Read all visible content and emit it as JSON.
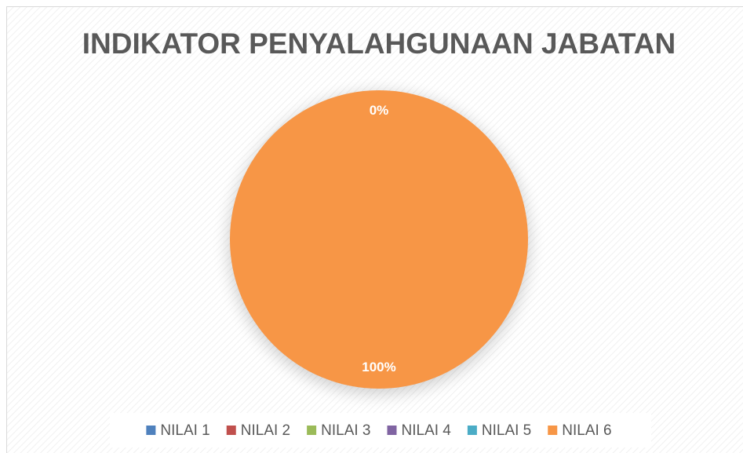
{
  "chart_data": {
    "type": "pie",
    "title": "INDIKATOR PENYALAHGUNAAN JABATAN",
    "categories": [
      "NILAI 1",
      "NILAI 2",
      "NILAI 3",
      "NILAI 4",
      "NILAI 5",
      "NILAI 6"
    ],
    "values": [
      0,
      0,
      0,
      0,
      0,
      100
    ],
    "value_labels": [
      "0%",
      null,
      null,
      null,
      null,
      "100%"
    ],
    "colors": [
      "#4f81bd",
      "#c0504d",
      "#9bbb59",
      "#8064a2",
      "#4bacc6",
      "#f79646"
    ],
    "legend": "bottom"
  }
}
